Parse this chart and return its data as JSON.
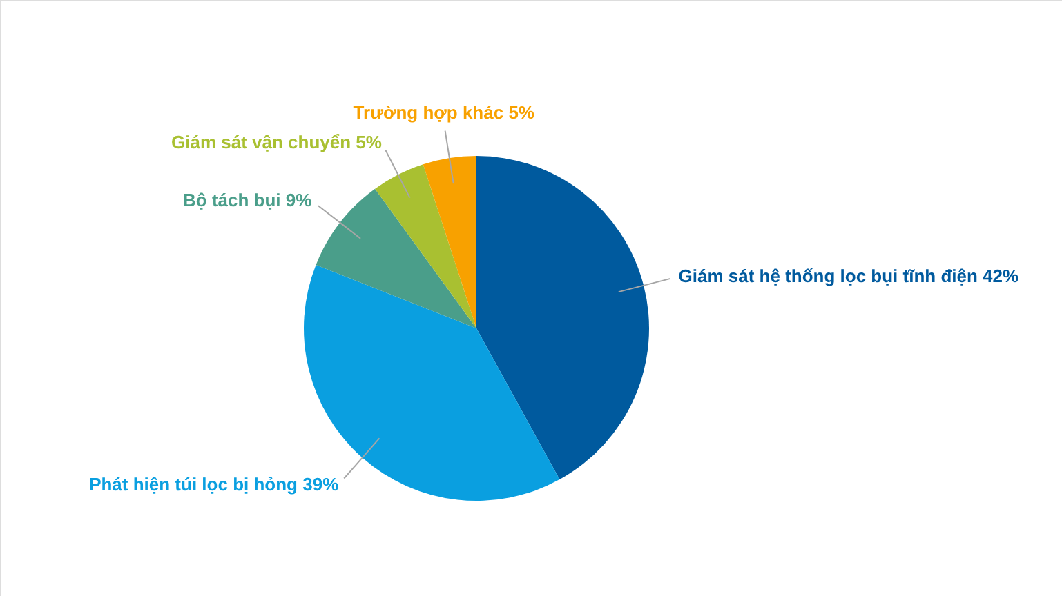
{
  "chart_data": {
    "type": "pie",
    "categories": [
      "Giám sát hệ thống lọc bụi tĩnh điện",
      "Phát hiện túi lọc bị hỏng",
      "Bộ tách bụi",
      "Giám sát vận chuyển",
      "Trường hợp khác"
    ],
    "values": [
      42,
      39,
      9,
      5,
      5
    ],
    "colors": [
      "#005a9e",
      "#0a9fe0",
      "#4a9e8a",
      "#a9c031",
      "#f8a100"
    ],
    "value_labels": [
      "42%",
      "39%",
      "9%",
      "5%",
      "5%"
    ]
  }
}
